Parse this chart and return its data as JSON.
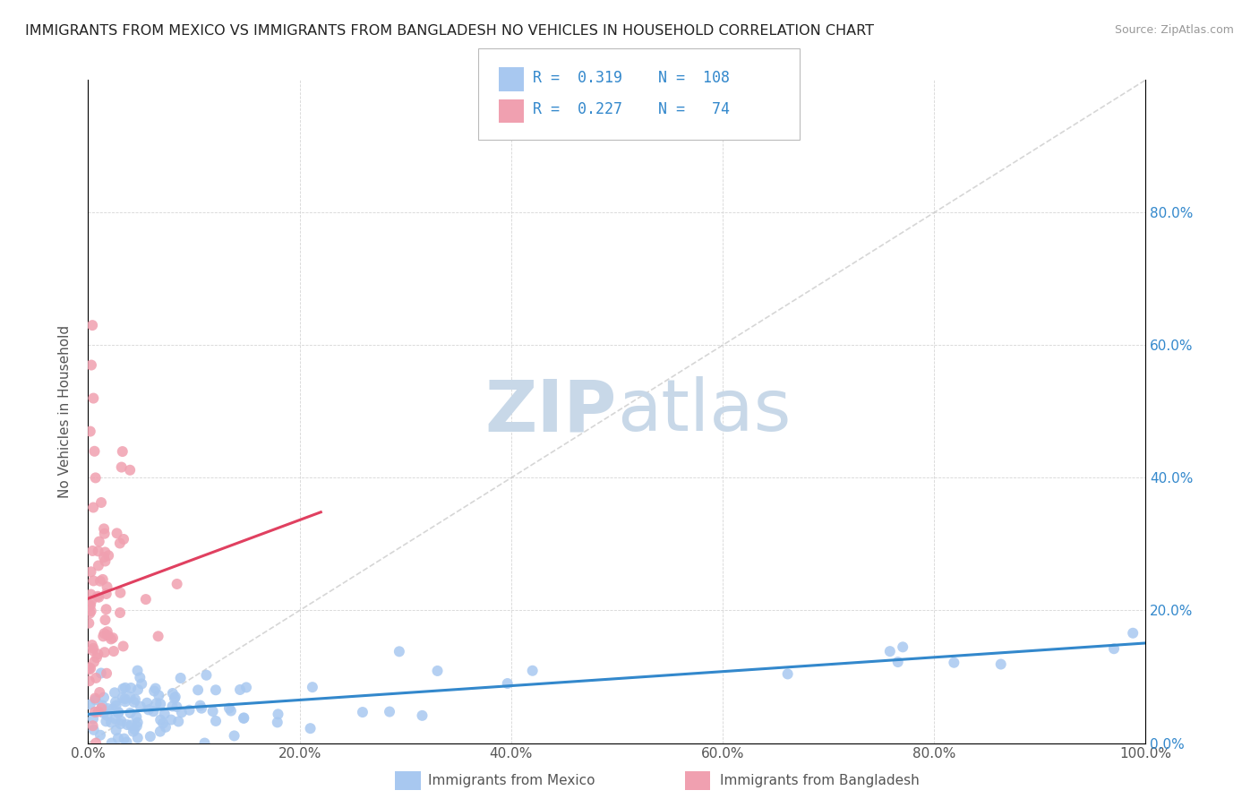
{
  "title": "IMMIGRANTS FROM MEXICO VS IMMIGRANTS FROM BANGLADESH NO VEHICLES IN HOUSEHOLD CORRELATION CHART",
  "source": "Source: ZipAtlas.com",
  "ylabel": "No Vehicles in Household",
  "legend_label1": "Immigrants from Mexico",
  "legend_label2": "Immigrants from Bangladesh",
  "R1": "0.319",
  "N1": "108",
  "R2": "0.227",
  "N2": "74",
  "color1": "#a8c8f0",
  "color2": "#f0a0b0",
  "trendline1_color": "#3388cc",
  "trendline2_color": "#e04060",
  "background_color": "#ffffff",
  "watermark_zip": "ZIP",
  "watermark_atlas": "atlas",
  "watermark_color": "#c8d8e8",
  "diagonal_line_color": "#cccccc",
  "seed": 42
}
